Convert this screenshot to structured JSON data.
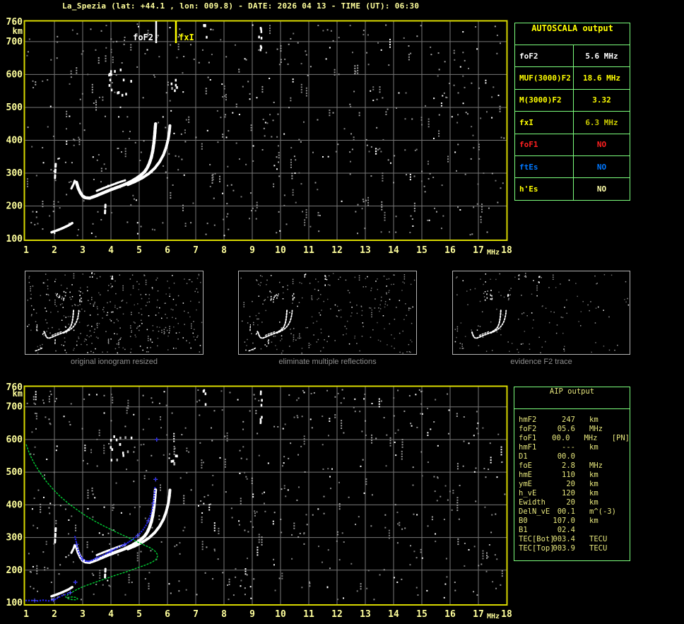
{
  "title": "La_Spezia (lat: +44.1 , lon: 009.8) - DATE: 2026 04 13 - TIME (UT): 06:30",
  "colors": {
    "accent_yellow": "#ffff9c",
    "frame_yellow": "#d8d800",
    "grid_gray": "#787878",
    "table_green": "#7dff7d",
    "trace_white": "#ffffff",
    "profile_green": "#00cc33",
    "model_blue": "#2222ee",
    "model_blue_light": "#5555ff",
    "status_red": "#ff2020",
    "status_blue": "#0077ff",
    "aip_text": "#e6e67c"
  },
  "autoscala": {
    "header": "AUTOSCALA output",
    "rows": [
      {
        "label": "foF2",
        "value": "5.6 MHz",
        "label_color": "#ffffff",
        "value_color": "#ffffff"
      },
      {
        "label": "MUF(3000)F2",
        "value": "18.6 MHz",
        "label_color": "#ffff00",
        "value_color": "#ffff00"
      },
      {
        "label": "M(3000)F2",
        "value": "3.32",
        "label_color": "#ffff00",
        "value_color": "#ffff00"
      },
      {
        "label": "fxI",
        "value": "6.3 MHz",
        "label_color": "#ffff00",
        "value_color": "#c9c900"
      },
      {
        "label": "foF1",
        "value": "NO",
        "label_color": "#ff2020",
        "value_color": "#ff2020"
      },
      {
        "label": "ftEs",
        "value": "NO",
        "label_color": "#0077ff",
        "value_color": "#0077ff"
      },
      {
        "label": "h'Es",
        "value": "NO",
        "label_color": "#ffff00",
        "value_color": "#ffffaa"
      }
    ]
  },
  "aip": {
    "header": "AIP output",
    "rows": [
      {
        "label": "hmF2",
        "value": "247",
        "unit": "km",
        "extra": ""
      },
      {
        "label": "foF2",
        "value": "05.6",
        "unit": "MHz",
        "extra": ""
      },
      {
        "label": "foF1",
        "value": "00.0",
        "unit": "MHz",
        "extra": "[PN]"
      },
      {
        "label": "hmF1",
        "value": "---",
        "unit": "km",
        "extra": ""
      },
      {
        "label": "D1",
        "value": "00.0",
        "unit": "",
        "extra": ""
      },
      {
        "label": "foE",
        "value": "2.8",
        "unit": "MHz",
        "extra": ""
      },
      {
        "label": "hmE",
        "value": "110",
        "unit": "km",
        "extra": ""
      },
      {
        "label": "ymE",
        "value": "20",
        "unit": "km",
        "extra": ""
      },
      {
        "label": "h_vE",
        "value": "120",
        "unit": "km",
        "extra": ""
      },
      {
        "label": "Ewidth",
        "value": "20",
        "unit": "km",
        "extra": ""
      },
      {
        "label": "DelN_vE",
        "value": "00.1",
        "unit": "m^(-3)",
        "extra": ""
      },
      {
        "label": "B0",
        "value": "107.0",
        "unit": "km",
        "extra": ""
      },
      {
        "label": "B1",
        "value": "02.4",
        "unit": "",
        "extra": ""
      },
      {
        "label": "TEC[Bot]",
        "value": "003.4",
        "unit": "TECU",
        "extra": ""
      },
      {
        "label": "TEC[Top]",
        "value": "003.9",
        "unit": "TECU",
        "extra": ""
      }
    ]
  },
  "panels": [
    {
      "caption": "original ionogram resized"
    },
    {
      "caption": "eliminate multiple reflections"
    },
    {
      "caption": "evidence F2 trace"
    }
  ],
  "chart_data": {
    "type": "scatter",
    "title": "Ionogram (virtual height vs frequency)",
    "xlabel": "MHz",
    "ylabel": "km",
    "xlim": [
      1,
      18
    ],
    "ylim": [
      100,
      760
    ],
    "xticks": [
      1,
      2,
      3,
      4,
      5,
      6,
      7,
      8,
      9,
      10,
      11,
      12,
      13,
      14,
      15,
      16,
      17,
      18
    ],
    "yticks": [
      760,
      700,
      600,
      500,
      400,
      300,
      200,
      100
    ],
    "grid": true,
    "markers": [
      {
        "label": "foF2",
        "x_mhz": 5.6,
        "color": "#ffffff"
      },
      {
        "label": "fxI",
        "x_mhz": 6.3,
        "color": "#ffff00"
      }
    ],
    "trace_segments": [
      {
        "kind": "f2",
        "w": 4.5,
        "dash": false,
        "points": [
          [
            2.78,
            272
          ],
          [
            2.84,
            255
          ],
          [
            2.92,
            240
          ],
          [
            3.0,
            230
          ],
          [
            3.1,
            225
          ],
          [
            3.25,
            224
          ],
          [
            3.45,
            230
          ],
          [
            3.7,
            239
          ],
          [
            3.95,
            248
          ],
          [
            4.2,
            256
          ],
          [
            4.45,
            264
          ],
          [
            4.7,
            274
          ],
          [
            4.9,
            284
          ],
          [
            5.05,
            293
          ],
          [
            5.18,
            303
          ],
          [
            5.28,
            315
          ],
          [
            5.36,
            330
          ],
          [
            5.43,
            348
          ],
          [
            5.48,
            368
          ],
          [
            5.52,
            392
          ],
          [
            5.55,
            418
          ],
          [
            5.57,
            440
          ],
          [
            5.58,
            450
          ]
        ]
      },
      {
        "kind": "f2",
        "w": 4,
        "dash": false,
        "points": [
          [
            4.6,
            265
          ],
          [
            4.85,
            274
          ],
          [
            5.1,
            285
          ],
          [
            5.35,
            299
          ],
          [
            5.55,
            315
          ],
          [
            5.72,
            334
          ],
          [
            5.86,
            356
          ],
          [
            5.96,
            380
          ],
          [
            6.03,
            405
          ],
          [
            6.07,
            428
          ],
          [
            6.09,
            448
          ]
        ]
      },
      {
        "kind": "f2",
        "w": 3,
        "dash": false,
        "points": [
          [
            3.5,
            246
          ],
          [
            3.75,
            255
          ],
          [
            4.0,
            263
          ],
          [
            4.25,
            271
          ],
          [
            4.5,
            278
          ]
        ]
      },
      {
        "kind": "aux",
        "w": 3,
        "dash": true,
        "points": [
          [
            2.02,
            285
          ],
          [
            2.05,
            332
          ]
        ]
      },
      {
        "kind": "aux",
        "w": 3,
        "dash": false,
        "points": [
          [
            2.6,
            253
          ],
          [
            2.68,
            267
          ],
          [
            2.73,
            280
          ]
        ]
      },
      {
        "kind": "aux",
        "w": 3.5,
        "dash": false,
        "points": [
          [
            1.9,
            120
          ],
          [
            2.1,
            126
          ],
          [
            2.3,
            133
          ],
          [
            2.5,
            141
          ],
          [
            2.63,
            148
          ]
        ]
      },
      {
        "kind": "aux",
        "w": 3,
        "dash": true,
        "points": [
          [
            3.79,
            178
          ],
          [
            3.81,
            212
          ]
        ]
      }
    ],
    "noise_clusters": [
      {
        "f": 4.3,
        "km": 578,
        "df": 0.42,
        "dkm": 40,
        "n": 15,
        "bright": 0.8
      },
      {
        "f": 6.2,
        "km": 560,
        "df": 0.12,
        "dkm": 35,
        "n": 6,
        "bright": 0.9
      },
      {
        "f": 9.25,
        "km": 700,
        "df": 0.06,
        "dkm": 55,
        "n": 8,
        "bright": 1.0
      },
      {
        "f": 7.3,
        "km": 735,
        "df": 0.06,
        "dkm": 28,
        "n": 4,
        "bright": 0.7
      }
    ],
    "profile_green": [
      [
        1.0,
        585
      ],
      [
        1.12,
        556
      ],
      [
        1.28,
        528
      ],
      [
        1.48,
        500
      ],
      [
        1.7,
        473
      ],
      [
        1.95,
        448
      ],
      [
        2.2,
        426
      ],
      [
        2.5,
        404
      ],
      [
        2.8,
        385
      ],
      [
        3.1,
        367
      ],
      [
        3.45,
        349
      ],
      [
        3.8,
        333
      ],
      [
        4.15,
        318
      ],
      [
        4.5,
        304
      ],
      [
        4.85,
        290
      ],
      [
        5.15,
        278
      ],
      [
        5.4,
        268
      ],
      [
        5.55,
        259
      ],
      [
        5.63,
        250
      ],
      [
        5.65,
        243
      ],
      [
        5.6,
        233
      ],
      [
        5.45,
        224
      ],
      [
        5.2,
        215
      ],
      [
        4.9,
        206
      ],
      [
        4.55,
        195
      ],
      [
        4.15,
        184
      ],
      [
        3.75,
        172
      ],
      [
        3.35,
        160
      ],
      [
        3.0,
        149
      ],
      [
        2.78,
        140
      ],
      [
        2.6,
        131
      ],
      [
        2.47,
        124
      ],
      [
        2.4,
        118
      ],
      [
        2.46,
        113
      ],
      [
        2.6,
        110
      ],
      [
        2.74,
        109
      ],
      [
        2.82,
        112
      ],
      [
        2.78,
        116
      ],
      [
        2.65,
        118
      ],
      [
        2.5,
        117
      ]
    ],
    "model_blue": {
      "e_chain": [
        [
          1.0,
          107
        ],
        [
          1.1,
          107
        ],
        [
          1.2,
          107
        ],
        [
          1.3,
          107
        ],
        [
          1.4,
          106
        ],
        [
          1.5,
          107
        ],
        [
          1.6,
          108
        ],
        [
          1.7,
          107
        ],
        [
          1.8,
          106
        ],
        [
          1.9,
          108
        ],
        [
          1.96,
          109
        ],
        [
          2.03,
          111
        ],
        [
          2.1,
          114
        ],
        [
          2.18,
          118
        ],
        [
          2.27,
          122
        ],
        [
          2.37,
          125
        ],
        [
          2.47,
          128
        ],
        [
          2.56,
          131
        ]
      ],
      "f_chain": [
        [
          2.73,
          302
        ],
        [
          2.77,
          287
        ],
        [
          2.81,
          271
        ],
        [
          2.86,
          256
        ],
        [
          2.92,
          243
        ],
        [
          3.0,
          233
        ],
        [
          3.1,
          228
        ],
        [
          3.22,
          227
        ],
        [
          3.35,
          231
        ],
        [
          3.5,
          237
        ],
        [
          3.65,
          243
        ],
        [
          3.82,
          250
        ],
        [
          4.0,
          258
        ],
        [
          4.18,
          266
        ],
        [
          4.36,
          273
        ],
        [
          4.54,
          281
        ],
        [
          4.72,
          291
        ],
        [
          4.88,
          301
        ],
        [
          5.02,
          312
        ],
        [
          5.14,
          324
        ],
        [
          5.24,
          337
        ],
        [
          5.32,
          351
        ],
        [
          5.39,
          366
        ],
        [
          5.44,
          381
        ],
        [
          5.48,
          397
        ],
        [
          5.51,
          413
        ],
        [
          5.53,
          428
        ],
        [
          5.55,
          443
        ],
        [
          5.56,
          452
        ]
      ],
      "extras": [
        [
          2.74,
          163
        ],
        [
          5.58,
          478
        ],
        [
          5.62,
          600
        ]
      ]
    },
    "noise": {
      "seed_top": 11,
      "seed_bottom": 23,
      "seed_panels": 37,
      "singles": 470,
      "runs": 85,
      "white_ratio": 0.13
    }
  }
}
